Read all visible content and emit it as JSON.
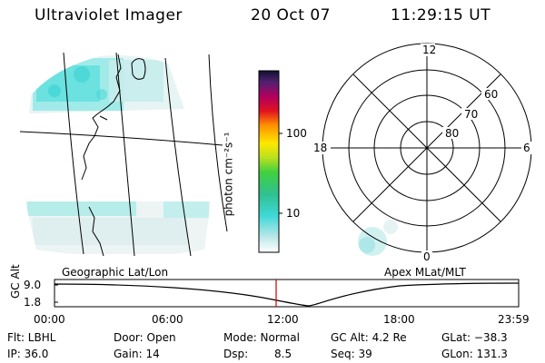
{
  "header": {
    "title": "Ultraviolet Imager",
    "date": "20 Oct 07",
    "time": "11:29:15 UT"
  },
  "colorbar": {
    "unit_label": "photon cm⁻²s⁻¹",
    "ticks": [
      "100",
      "10"
    ]
  },
  "geo_panel": {
    "label": "Geographic Lat/Lon"
  },
  "polar_panel": {
    "label": "Apex MLat/MLT",
    "mlt_labels": [
      "12",
      "18",
      "6",
      "0"
    ],
    "lat_labels": [
      "60",
      "70",
      "80"
    ]
  },
  "altitude": {
    "ylabel": "GC Alt",
    "yticks": [
      "9.0",
      "1.8"
    ],
    "xticks": [
      "00:00",
      "06:00",
      "12:00",
      "18:00",
      "23:59"
    ],
    "current_marker": "11:29",
    "marker_color": "#cc0000"
  },
  "status": {
    "flt": "Flt: LBHL",
    "door": "Door: Open",
    "mode": "Mode: Normal",
    "gc_alt": "GC Alt: 4.2 Re",
    "glat": "GLat: −38.3",
    "ip": "IP: 36.0",
    "gain": "Gain: 14",
    "dsp_label": "Dsp:",
    "dsp_value": "8.5",
    "seq": "Seq: 39",
    "glon": "GLon: 131.3"
  },
  "colors": {
    "aurora_cyan": "#5fe0e0",
    "aurora_pale": "#c8e8e8"
  }
}
